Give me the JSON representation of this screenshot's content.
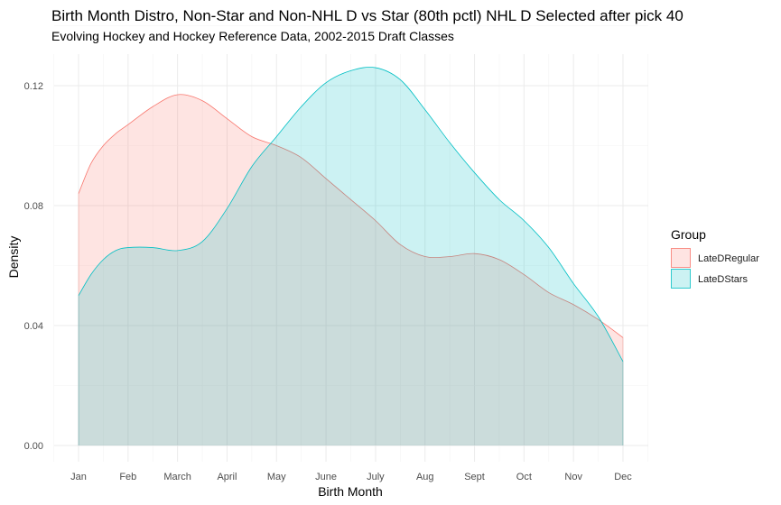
{
  "chart_data": {
    "type": "area",
    "title": "Birth Month Distro, Non-Star and Non-NHL D vs Star (80th pctl) NHL D Selected after pick 40",
    "subtitle": "Evolving Hockey and Hockey Reference Data, 2002-2015 Draft Classes",
    "xlabel": "Birth Month",
    "ylabel": "Density",
    "x_range": [
      1,
      12
    ],
    "ylim": [
      0,
      0.13
    ],
    "x_ticks": [
      {
        "x": 1,
        "label": "Jan"
      },
      {
        "x": 2,
        "label": "Feb"
      },
      {
        "x": 3,
        "label": "March"
      },
      {
        "x": 4,
        "label": "April"
      },
      {
        "x": 5,
        "label": "May"
      },
      {
        "x": 6,
        "label": "June"
      },
      {
        "x": 7,
        "label": "July"
      },
      {
        "x": 8,
        "label": "Aug"
      },
      {
        "x": 9,
        "label": "Sept"
      },
      {
        "x": 10,
        "label": "Oct"
      },
      {
        "x": 11,
        "label": "Nov"
      },
      {
        "x": 12,
        "label": "Dec"
      }
    ],
    "y_ticks": [
      {
        "y": 0,
        "label": "0.00"
      },
      {
        "y": 0.04,
        "label": "0.04"
      },
      {
        "y": 0.08,
        "label": "0.08"
      },
      {
        "y": 0.12,
        "label": "0.12"
      }
    ],
    "grid": true,
    "legend": {
      "title": "Group",
      "position": "right"
    },
    "series": [
      {
        "name": "LateDRegular",
        "color": "#f8766d",
        "fill": "#f8766d",
        "x": [
          1,
          1.25,
          1.5,
          1.75,
          2,
          2.5,
          3,
          3.5,
          4,
          4.5,
          5,
          5.5,
          6,
          6.5,
          7,
          7.5,
          8,
          8.5,
          9,
          9.5,
          10,
          10.5,
          11,
          11.5,
          12
        ],
        "y": [
          0.084,
          0.094,
          0.1,
          0.104,
          0.107,
          0.113,
          0.117,
          0.115,
          0.109,
          0.103,
          0.1,
          0.096,
          0.089,
          0.082,
          0.075,
          0.067,
          0.063,
          0.063,
          0.064,
          0.062,
          0.057,
          0.051,
          0.047,
          0.042,
          0.036
        ]
      },
      {
        "name": "LateDStars",
        "color": "#00bfc4",
        "fill": "#00bfc4",
        "x": [
          1,
          1.25,
          1.5,
          1.75,
          2,
          2.5,
          3,
          3.5,
          4,
          4.5,
          5,
          5.5,
          6,
          6.5,
          7,
          7.5,
          8,
          8.5,
          9,
          9.5,
          10,
          10.5,
          11,
          11.5,
          12
        ],
        "y": [
          0.05,
          0.057,
          0.062,
          0.065,
          0.066,
          0.066,
          0.065,
          0.068,
          0.079,
          0.093,
          0.103,
          0.113,
          0.121,
          0.125,
          0.126,
          0.122,
          0.112,
          0.101,
          0.091,
          0.082,
          0.075,
          0.066,
          0.054,
          0.043,
          0.028
        ]
      }
    ]
  }
}
